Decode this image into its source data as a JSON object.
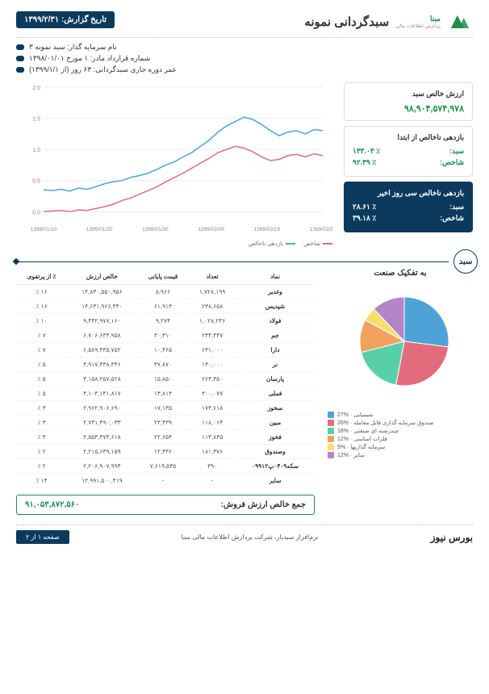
{
  "header": {
    "brand": "مبنا",
    "brand_sub": "پردازش اطلاعات مالی",
    "title": "سبدگردانی نمونه",
    "date_label": "تاریخ گزارش:",
    "date_value": "۱۳۹۹/۲/۳۱",
    "logo_color": "#1a8f4a"
  },
  "info": {
    "investor": "نام سرمایه گذار: سبد نمونه ۳",
    "contract": "شماره قرارداد مادر: ۱ مورخ ۱۳۹۸/۰۱/۰۱",
    "duration": "عمر دوره جاری سبدگردانی: ۶۳ روز (از ۱۳۹۹/۱/۱)"
  },
  "kpi1": {
    "title": "ارزش خالص سبد",
    "value": "۹۸,۹۰۴,۵۷۴,۹۷۸"
  },
  "kpi2": {
    "title": "بازدهی ناخالص از ابتدا",
    "row1_lbl": "سبد:",
    "row1_val": "٪ ۱۳۳.۰۳",
    "row2_lbl": "شاخص:",
    "row2_val": "٪ ۹۲.۳۹"
  },
  "kpi3": {
    "title": "بازدهی ناخالص سی روز اخیر",
    "row1_lbl": "سبد:",
    "row1_val": "٪ ۲۸.۶۱",
    "row2_lbl": "شاخص:",
    "row2_val": "٪ ۳۹.۱۸"
  },
  "line_chart": {
    "type": "line",
    "colors": {
      "series1": "#4da3d8",
      "series2": "#e36c7c",
      "grid": "#eeeeee",
      "axis": "#999999"
    },
    "xlabels": [
      "1399/01/10",
      "1399/01/20",
      "1399/01/30",
      "1399/02/09",
      "1399/02/19",
      "1399/02/29"
    ],
    "yticks": [
      0,
      0.5,
      1.0,
      1.5,
      2.0
    ],
    "ylim": [
      -0.1,
      2.0
    ],
    "series1_name": "بازدهی ناخالص",
    "series2_name": "شاخص",
    "series1": [
      0.35,
      0.34,
      0.36,
      0.33,
      0.38,
      0.36,
      0.4,
      0.45,
      0.48,
      0.5,
      0.55,
      0.58,
      0.62,
      0.68,
      0.75,
      0.8,
      0.88,
      0.95,
      1.05,
      1.15,
      1.28,
      1.38,
      1.45,
      1.52,
      1.48,
      1.4,
      1.3,
      1.22,
      1.28,
      1.3,
      1.25,
      1.32,
      1.3
    ],
    "series2": [
      0.0,
      0.01,
      0.02,
      0.0,
      0.03,
      0.02,
      0.05,
      0.08,
      0.12,
      0.18,
      0.22,
      0.28,
      0.34,
      0.4,
      0.48,
      0.55,
      0.62,
      0.7,
      0.78,
      0.86,
      0.95,
      1.0,
      1.05,
      1.02,
      0.96,
      0.88,
      0.82,
      0.84,
      0.9,
      0.92,
      0.88,
      0.93,
      0.9
    ]
  },
  "section_label": "سبد",
  "table": {
    "headers": [
      "نماد",
      "تعداد",
      "قیمت پایانی",
      "خالص ارزش",
      "٪ از پرتفوی"
    ],
    "rows": [
      [
        "وغدیر",
        "۱,۷۲۸,۱۹۹",
        "۸,۹۶۶",
        "۱۴,۸۳۰,۵۵۰,۹۵۶",
        "۱۶ ٪"
      ],
      [
        "شپدیس",
        "۲۳۸,۶۵۸",
        "۶۱,۹۱۳",
        "۱۴,۶۳۱,۹۶۶,۴۴۰",
        "۱۶ ٪"
      ],
      [
        "فولاد",
        "۱,۰۲۸,۲۴۶",
        "۹,۲۷۴",
        "۹,۴۴۲,۹۷۷,۱۶۰",
        "۱۰ ٪"
      ],
      [
        "جم",
        "۲۳۳,۴۴۷",
        "۳۰,۳۱۰",
        "۶,۷۰۶,۶۴۴,۹۵۸",
        "۷ ٪"
      ],
      [
        "دارا",
        "۶۳۱,۰۰۰",
        "۱۰,۴۶۵",
        "۶,۵۸۹,۴۳۵,۷۵۲",
        "۷ ٪"
      ],
      [
        "نر",
        "۱۳۰,۰۰۰",
        "۳۷,۸۷۰",
        "۴,۹۱۷,۴۳۸,۳۴۶",
        "۵ ٪"
      ],
      [
        "پارسان",
        "۲۶۴,۳۵۰",
        "۱۵,۸۵۰",
        "۴,۱۵۸,۲۵۷,۵۲۸",
        "۵ ٪"
      ],
      [
        "فملی",
        "۳۰۰,۰۷۷",
        "۱۳,۸۱۳",
        "۴,۱۰۴,۱۴۱,۸۱۷",
        "۵ ٪"
      ],
      [
        "سخوز",
        "۱۷۴,۶۱۸",
        "۱۷,۱۳۵",
        "۲,۹۶۲,۹۰۶,۶۹۰",
        "۳ ٪"
      ],
      [
        "مبین",
        "۱۱۸,۰۶۴",
        "۲۳,۴۳۹",
        "۲,۷۴۱,۴۹۰,۰۳۳",
        "۳ ٪"
      ],
      [
        "فخوز",
        "۱۱۳,۸۳۵",
        "۲۲,۶۵۴",
        "۲,۵۵۳,۴۷۴,۶۱۸",
        "۳ ٪"
      ],
      [
        "وصندوق",
        "۱۸۱,۳۷۶",
        "۱۲,۳۳۶",
        "۲,۲۱۵,۶۳۹,۱۵۹",
        "۲ ٪"
      ],
      [
        "سکه۰۴۰۹پ۰۹۹۱۲",
        "۳۹۰",
        "۷,۶۱۹,۵۳۵",
        "۲,۲۰۶,۹۰۷,۹۹۴",
        "۲ ٪"
      ],
      [
        "سایر",
        "-",
        "-",
        "۱۲,۹۹۱,۵۰۰,۴۱۹",
        "۱۴ ٪"
      ]
    ],
    "total_label": "جمع خالص ارزش فروش:",
    "total_value": "۹۱,۰۵۳,۸۷۲,۵۶۰"
  },
  "pie": {
    "title": "به تفکیک صنعت",
    "type": "pie",
    "slices": [
      {
        "label": "شیمیایی",
        "pct": 27,
        "color": "#4da3d8"
      },
      {
        "label": "صندوق سرمایه گذاری قابل معامله",
        "pct": 26,
        "color": "#e36c7c"
      },
      {
        "label": "چندرشته ای صنعتی",
        "pct": 18,
        "color": "#58cfa8"
      },
      {
        "label": "فلزات اساسی",
        "pct": 12,
        "color": "#f3a15f"
      },
      {
        "label": "سرمایه گذاریها",
        "pct": 5,
        "color": "#f7df6a"
      },
      {
        "label": "سایر",
        "pct": 12,
        "color": "#b584c9"
      }
    ]
  },
  "footer": {
    "left": "نرم‌افزار سبدیار، شرکت پردازش اطلاعات مالی مبنا",
    "brand": "بورس نیوز",
    "page": "صفحه ۱ از ۲"
  },
  "colors": {
    "primary": "#0b3a5d",
    "accent": "#1a8f4a"
  }
}
